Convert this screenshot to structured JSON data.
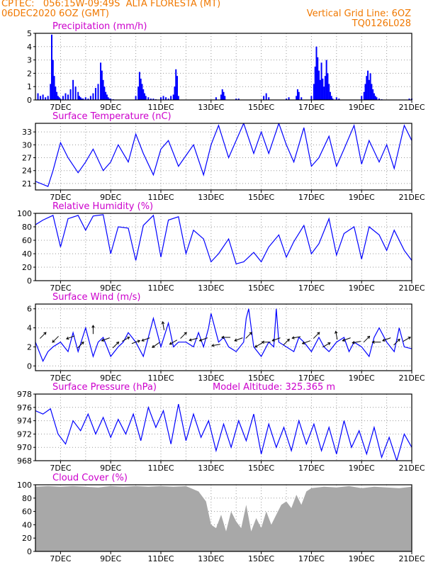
{
  "header": {
    "line1_left": "CPTEC:   056:15W-09:49S  ALTA FLORESTA (MT)",
    "line2_left": "06DEC2020 6OZ (GMT)",
    "line1_right": "Vertical Grid Line: 6OZ",
    "line2_right": "TQ0126L028"
  },
  "colors": {
    "header_text": "#f07800",
    "panel_title": "#cc00cc",
    "series_line": "#0000ff",
    "precip_bar": "#0000ff",
    "cloud_fill": "#a8a8a8",
    "grid": "#999999",
    "wind_arrow": "#000000"
  },
  "x_axis": {
    "start_day": 6,
    "end_day": 21,
    "tick_labels": [
      "7DEC",
      "9DEC",
      "11DEC",
      "13DEC",
      "15DEC",
      "17DEC",
      "19DEC",
      "21DEC"
    ],
    "tick_days": [
      7,
      9,
      11,
      13,
      15,
      17,
      19,
      21
    ]
  },
  "chart_data": [
    {
      "id": "precip",
      "type": "bar",
      "title": "Precipitation (mm/h)",
      "ylim": [
        0,
        5
      ],
      "yticks": [
        0,
        1,
        2,
        3,
        4,
        5
      ],
      "x": [
        6.1,
        6.2,
        6.3,
        6.4,
        6.5,
        6.6,
        6.65,
        6.7,
        6.75,
        6.8,
        6.85,
        6.9,
        6.95,
        7.0,
        7.1,
        7.2,
        7.3,
        7.4,
        7.5,
        7.6,
        7.7,
        7.75,
        7.8,
        7.85,
        7.9,
        8.0,
        8.1,
        8.2,
        8.3,
        8.4,
        8.5,
        8.6,
        8.65,
        8.7,
        8.75,
        8.8,
        8.85,
        8.9,
        8.95,
        9.0,
        9.1,
        10.0,
        10.1,
        10.15,
        10.2,
        10.25,
        10.3,
        10.35,
        10.4,
        10.5,
        10.6,
        10.7,
        10.8,
        11.0,
        11.1,
        11.2,
        11.3,
        11.4,
        11.5,
        11.55,
        11.6,
        11.65,
        11.7,
        13.2,
        13.4,
        13.45,
        13.5,
        13.55,
        14.0,
        14.1,
        15.1,
        15.2,
        15.3,
        16.0,
        16.1,
        16.4,
        16.45,
        16.5,
        16.6,
        17.0,
        17.1,
        17.15,
        17.2,
        17.25,
        17.3,
        17.35,
        17.4,
        17.45,
        17.5,
        17.55,
        17.6,
        17.65,
        17.7,
        17.75,
        17.8,
        17.85,
        18.0,
        18.1,
        19.0,
        19.1,
        19.15,
        19.2,
        19.25,
        19.3,
        19.35,
        19.4,
        19.45,
        19.5,
        19.55,
        19.6,
        19.7,
        19.8,
        20.9,
        21.0
      ],
      "values": [
        0.5,
        0.3,
        0.4,
        0.2,
        0.3,
        1.2,
        4.9,
        3.0,
        1.8,
        1.0,
        0.6,
        0.3,
        0.2,
        0.1,
        0.3,
        0.5,
        0.4,
        0.8,
        1.5,
        1.0,
        0.6,
        0.3,
        0.2,
        0.1,
        0.1,
        0.2,
        0.1,
        0.3,
        0.5,
        0.9,
        1.2,
        2.8,
        2.2,
        1.5,
        1.0,
        0.6,
        0.4,
        0.2,
        0.1,
        0.1,
        0.05,
        0.3,
        1.0,
        2.1,
        1.6,
        1.2,
        0.8,
        0.5,
        0.3,
        0.2,
        0.1,
        0.1,
        0.05,
        0.2,
        0.3,
        0.2,
        0.1,
        0.3,
        0.4,
        1.0,
        2.3,
        1.8,
        0.3,
        0.2,
        0.4,
        0.8,
        0.6,
        0.3,
        0.1,
        0.1,
        0.3,
        0.5,
        0.2,
        0.1,
        0.2,
        0.3,
        0.8,
        0.6,
        0.2,
        0.3,
        1.2,
        2.5,
        4.0,
        3.2,
        2.2,
        1.5,
        2.8,
        1.6,
        1.0,
        1.8,
        3.0,
        2.0,
        1.2,
        0.6,
        0.3,
        0.1,
        0.2,
        0.1,
        0.3,
        0.6,
        1.2,
        1.8,
        2.2,
        1.5,
        2.0,
        1.2,
        0.8,
        0.5,
        0.3,
        0.2,
        0.1,
        0.05,
        0.1,
        0.1
      ]
    },
    {
      "id": "temp",
      "type": "line",
      "title": "Surface Temperature (nC)",
      "ylim": [
        19.5,
        35
      ],
      "yticks": [
        21,
        24,
        27,
        30,
        33
      ],
      "x": [
        6.0,
        6.5,
        6.7,
        7.0,
        7.3,
        7.7,
        8.0,
        8.3,
        8.7,
        9.0,
        9.3,
        9.7,
        10.0,
        10.3,
        10.7,
        11.0,
        11.3,
        11.7,
        12.0,
        12.3,
        12.7,
        13.0,
        13.3,
        13.7,
        14.0,
        14.3,
        14.7,
        15.0,
        15.3,
        15.7,
        16.0,
        16.3,
        16.7,
        17.0,
        17.3,
        17.7,
        18.0,
        18.3,
        18.7,
        19.0,
        19.3,
        19.7,
        20.0,
        20.3,
        20.7,
        21.0
      ],
      "values": [
        21.5,
        20.3,
        24,
        30.5,
        27,
        23.5,
        26,
        29,
        24,
        26,
        30,
        26,
        32.5,
        28,
        23,
        29,
        31,
        25,
        27.5,
        30,
        23,
        30,
        34.5,
        27,
        31,
        35,
        28,
        33,
        28,
        35,
        30,
        26,
        34,
        25,
        27,
        32,
        25,
        29,
        34.5,
        25.5,
        31,
        26,
        30,
        24.5,
        34.5,
        31
      ]
    },
    {
      "id": "rh",
      "type": "line",
      "title": "Relative Humidity (%)",
      "ylim": [
        0,
        100
      ],
      "yticks": [
        0,
        20,
        40,
        60,
        80,
        100
      ],
      "x": [
        6.0,
        6.3,
        6.7,
        7.0,
        7.3,
        7.7,
        8.0,
        8.3,
        8.7,
        9.0,
        9.3,
        9.7,
        10.0,
        10.3,
        10.7,
        11.0,
        11.3,
        11.7,
        12.0,
        12.3,
        12.7,
        13.0,
        13.3,
        13.7,
        14.0,
        14.3,
        14.7,
        15.0,
        15.3,
        15.7,
        16.0,
        16.3,
        16.7,
        17.0,
        17.3,
        17.7,
        18.0,
        18.3,
        18.7,
        19.0,
        19.3,
        19.7,
        20.0,
        20.3,
        20.7,
        21.0
      ],
      "values": [
        83,
        90,
        97,
        50,
        92,
        97,
        75,
        96,
        98,
        40,
        80,
        78,
        30,
        82,
        97,
        35,
        90,
        95,
        40,
        75,
        62,
        28,
        40,
        62,
        25,
        28,
        42,
        28,
        50,
        68,
        35,
        58,
        82,
        40,
        55,
        92,
        38,
        70,
        80,
        32,
        80,
        68,
        45,
        75,
        45,
        30
      ]
    },
    {
      "id": "wind",
      "type": "line",
      "title": "Surface Wind (m/s)",
      "ylim": [
        -0.5,
        6.5
      ],
      "yticks": [
        0,
        2,
        4,
        6
      ],
      "x": [
        6.0,
        6.3,
        6.5,
        6.7,
        7.0,
        7.3,
        7.5,
        7.7,
        8.0,
        8.3,
        8.5,
        8.7,
        9.0,
        9.3,
        9.5,
        9.7,
        10.0,
        10.3,
        10.5,
        10.7,
        10.9,
        11.0,
        11.3,
        11.5,
        11.7,
        12.0,
        12.3,
        12.5,
        12.7,
        12.9,
        13.0,
        13.3,
        13.5,
        13.7,
        14.0,
        14.3,
        14.4,
        14.5,
        14.7,
        15.0,
        15.3,
        15.5,
        15.6,
        15.7,
        16.0,
        16.3,
        16.5,
        16.7,
        17.0,
        17.3,
        17.5,
        17.7,
        18.0,
        18.3,
        18.5,
        18.7,
        19.0,
        19.3,
        19.5,
        19.7,
        20.0,
        20.3,
        20.5,
        20.7,
        21.0
      ],
      "values": [
        2.5,
        0.5,
        1.5,
        2.0,
        2.5,
        1.5,
        3.5,
        1.5,
        4.0,
        1.0,
        2.5,
        3.0,
        1.0,
        2.0,
        2.5,
        3.5,
        2.5,
        1.0,
        3.0,
        5.0,
        3.0,
        2.0,
        4.5,
        2.0,
        2.5,
        2.5,
        2.0,
        3.5,
        2.0,
        4.0,
        5.5,
        2.5,
        3.0,
        2.0,
        1.5,
        2.5,
        5.0,
        6.0,
        2.0,
        1.0,
        2.5,
        2.0,
        6.0,
        2.5,
        2.0,
        1.5,
        3.0,
        2.5,
        1.5,
        3.0,
        2.0,
        1.5,
        2.5,
        3.0,
        1.5,
        2.5,
        2.0,
        1.0,
        3.0,
        4.0,
        2.5,
        1.5,
        4.0,
        2.0,
        1.8
      ]
    },
    {
      "id": "wind_dir",
      "type": "scatter",
      "title": "",
      "x": [
        6.3,
        6.8,
        7.4,
        7.8,
        8.3,
        8.8,
        9.2,
        9.6,
        10.0,
        10.4,
        10.8,
        11.1,
        11.5,
        11.9,
        12.3,
        12.7,
        13.2,
        13.6,
        14.1,
        14.5,
        14.9,
        15.2,
        15.6,
        16.0,
        16.4,
        16.8,
        17.2,
        17.6,
        18.0,
        18.4,
        18.8,
        19.2,
        19.6,
        20.0,
        20.4,
        20.8
      ],
      "values": [
        3.2,
        2.8,
        3.0,
        2.2,
        3.8,
        2.8,
        2.2,
        2.8,
        2.5,
        2.8,
        2.2,
        4.2,
        2.5,
        3.2,
        2.8,
        2.8,
        2.2,
        3.0,
        2.8,
        3.2,
        2.2,
        2.5,
        2.8,
        2.5,
        3.0,
        2.5,
        3.2,
        2.2,
        3.2,
        2.8,
        2.5,
        2.8,
        2.5,
        2.8,
        2.5,
        2.8
      ],
      "directions_deg": [
        45,
        225,
        200,
        45,
        90,
        200,
        45,
        30,
        20,
        200,
        215,
        100,
        210,
        45,
        195,
        200,
        190,
        180,
        200,
        45,
        210,
        180,
        200,
        45,
        190,
        200,
        45,
        30,
        100,
        200,
        190,
        45,
        180,
        200,
        45,
        30
      ]
    },
    {
      "id": "pressure",
      "type": "line",
      "title": "Surface Pressure (hPa)",
      "annotation": "Model Altitude: 325.365 m",
      "ylim": [
        968,
        978
      ],
      "yticks": [
        968,
        970,
        972,
        974,
        976,
        978
      ],
      "x": [
        6.0,
        6.3,
        6.6,
        6.9,
        7.2,
        7.5,
        7.8,
        8.1,
        8.4,
        8.7,
        9.0,
        9.3,
        9.6,
        9.9,
        10.2,
        10.5,
        10.8,
        11.1,
        11.4,
        11.7,
        12.0,
        12.3,
        12.6,
        12.9,
        13.2,
        13.5,
        13.8,
        14.1,
        14.4,
        14.7,
        15.0,
        15.3,
        15.6,
        15.9,
        16.2,
        16.5,
        16.8,
        17.1,
        17.4,
        17.7,
        18.0,
        18.3,
        18.6,
        18.9,
        19.2,
        19.5,
        19.8,
        20.1,
        20.4,
        20.7,
        21.0
      ],
      "values": [
        975.5,
        975,
        975.8,
        972,
        970.5,
        974,
        972.5,
        975,
        972,
        974.5,
        971.5,
        974.2,
        972,
        975,
        971,
        976,
        973,
        975.5,
        970.5,
        976.5,
        971,
        975,
        971.5,
        974,
        969.5,
        973.5,
        970,
        974,
        971,
        975,
        969,
        973.5,
        970,
        973,
        969.5,
        974,
        970.5,
        973.5,
        969.5,
        973,
        969,
        974,
        970,
        972.5,
        969,
        973,
        968.5,
        971.5,
        968,
        972,
        970
      ]
    },
    {
      "id": "cloud",
      "type": "area",
      "title": "Cloud Cover (%)",
      "ylim": [
        0,
        100
      ],
      "yticks": [
        0,
        20,
        40,
        60,
        80,
        100
      ],
      "x": [
        6.0,
        6.5,
        7.0,
        7.5,
        8.0,
        8.5,
        9.0,
        9.5,
        10.0,
        10.5,
        11.0,
        11.5,
        12.0,
        12.5,
        12.8,
        13.0,
        13.2,
        13.4,
        13.6,
        13.8,
        14.0,
        14.2,
        14.4,
        14.6,
        14.8,
        15.0,
        15.2,
        15.4,
        15.6,
        15.8,
        16.0,
        16.2,
        16.4,
        16.6,
        16.8,
        17.0,
        17.5,
        18.0,
        18.5,
        19.0,
        19.5,
        20.0,
        20.5,
        21.0
      ],
      "values": [
        97,
        98,
        97,
        98,
        97,
        96,
        98,
        97,
        98,
        97,
        98,
        97,
        98,
        90,
        75,
        40,
        35,
        55,
        30,
        60,
        45,
        35,
        70,
        30,
        50,
        35,
        60,
        40,
        55,
        70,
        75,
        65,
        85,
        70,
        90,
        95,
        97,
        96,
        98,
        95,
        97,
        96,
        95,
        97
      ]
    }
  ]
}
